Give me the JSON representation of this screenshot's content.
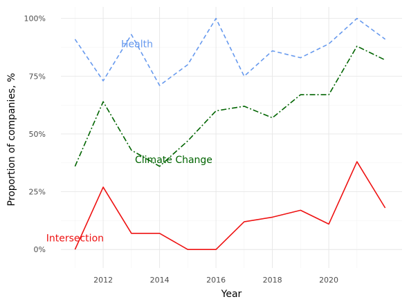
{
  "chart_data": {
    "type": "line",
    "xlabel": "Year",
    "ylabel": "Proportion of companies, %",
    "xlim": [
      2010.5,
      2022.6
    ],
    "ylim": [
      -0.08,
      1.05
    ],
    "x_ticks": [
      2012,
      2014,
      2016,
      2018,
      2020
    ],
    "x_tick_labels": [
      "2012",
      "2014",
      "2016",
      "2018",
      "2020"
    ],
    "y_ticks": [
      0,
      0.25,
      0.5,
      0.75,
      1.0
    ],
    "y_tick_labels": [
      "0%",
      "25%",
      "50%",
      "75%",
      "100%"
    ],
    "grid": true,
    "series": [
      {
        "name": "Health",
        "color": "#6699EE",
        "dash": "dashed",
        "x": [
          2011,
          2012,
          2013,
          2014,
          2015,
          2016,
          2017,
          2018,
          2019,
          2020,
          2021,
          2022
        ],
        "values": [
          0.91,
          0.73,
          0.93,
          0.71,
          0.8,
          1.0,
          0.75,
          0.86,
          0.83,
          0.89,
          1.0,
          0.91
        ],
        "label_x": 2013.2,
        "label_y": 0.89
      },
      {
        "name": "Climate Change",
        "color": "#006400",
        "dash": "dashdot",
        "x": [
          2011,
          2012,
          2013,
          2014,
          2015,
          2016,
          2017,
          2018,
          2019,
          2020,
          2021,
          2022
        ],
        "values": [
          0.36,
          0.64,
          0.43,
          0.36,
          0.47,
          0.6,
          0.62,
          0.57,
          0.67,
          0.67,
          0.88,
          0.82
        ],
        "label_x": 2014.5,
        "label_y": 0.39
      },
      {
        "name": "Intersection",
        "color": "#EE1111",
        "dash": "solid",
        "x": [
          2011,
          2012,
          2013,
          2014,
          2015,
          2016,
          2017,
          2018,
          2019,
          2020,
          2021,
          2022
        ],
        "values": [
          0.0,
          0.27,
          0.07,
          0.07,
          0.0,
          0.0,
          0.12,
          0.14,
          0.17,
          0.11,
          0.38,
          0.18
        ],
        "label_x": 2011.0,
        "label_y": 0.05
      }
    ]
  }
}
